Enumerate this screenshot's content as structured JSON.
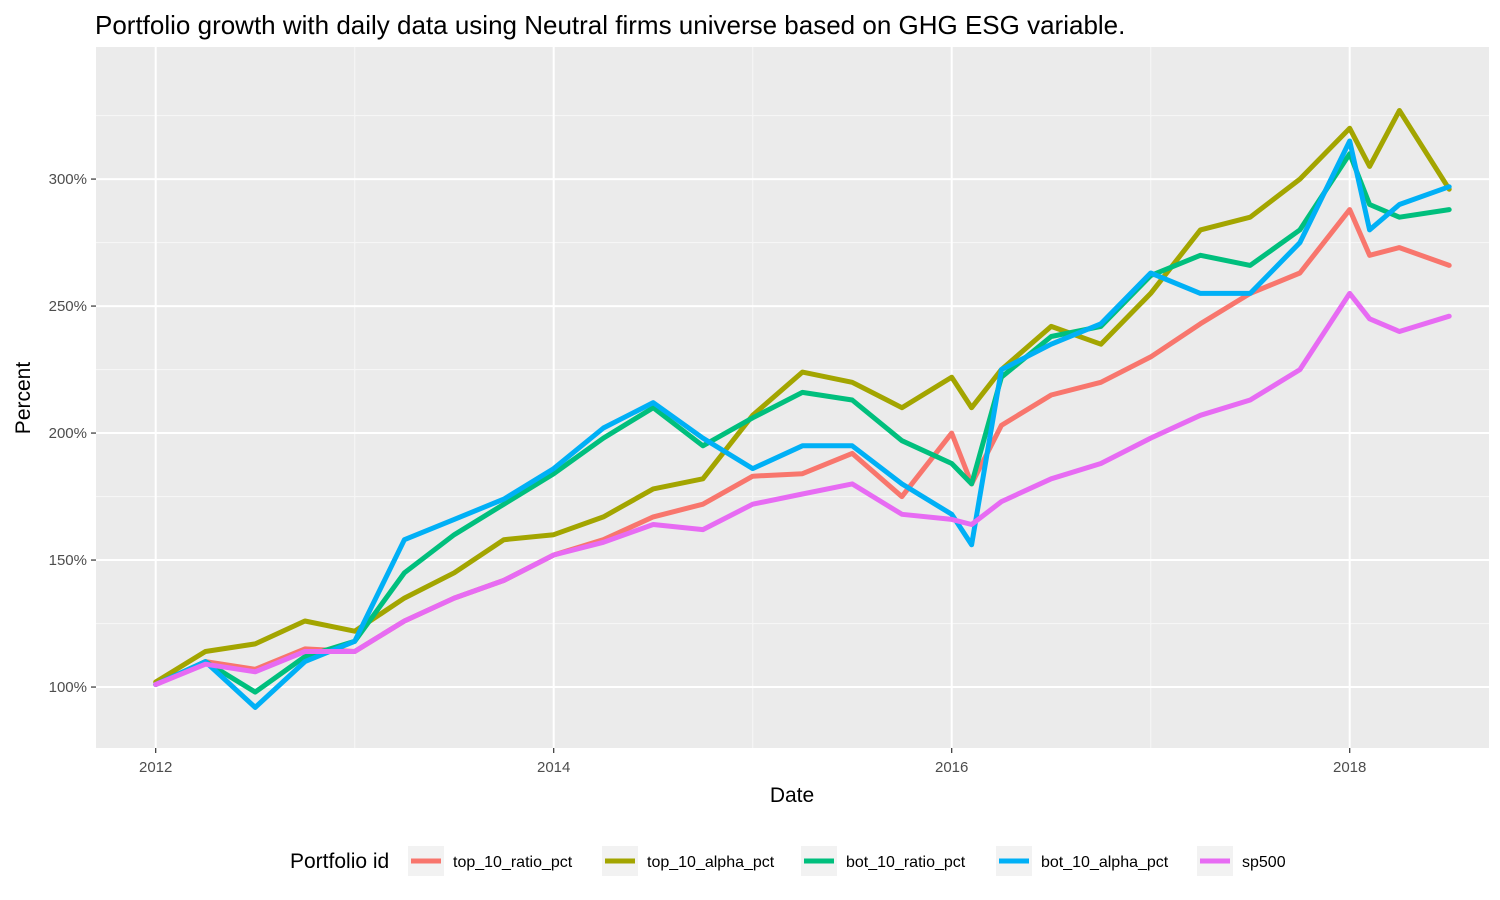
{
  "chart_data": {
    "type": "line",
    "title": "Portfolio growth with daily data using Neutral firms universe based on GHG ESG variable.",
    "xlabel": "Date",
    "ylabel": "Percent",
    "xlim": [
      2011.7,
      2018.7
    ],
    "ylim": [
      0.76,
      3.52
    ],
    "x_ticks": [
      2012,
      2014,
      2016,
      2018
    ],
    "x_tick_labels": [
      "2012",
      "2014",
      "2016",
      "2018"
    ],
    "y_ticks": [
      1.0,
      1.5,
      2.0,
      2.5,
      3.0
    ],
    "y_tick_labels": [
      "100%",
      "150%",
      "200%",
      "250%",
      "300%"
    ],
    "grid": true,
    "legend_title": "Portfolio id",
    "legend_position": "bottom",
    "series": [
      {
        "name": "top_10_ratio_pct",
        "color": "#F8766D",
        "x": [
          2012.0,
          2012.25,
          2012.5,
          2012.75,
          2013.0,
          2013.25,
          2013.5,
          2013.75,
          2014.0,
          2014.25,
          2014.5,
          2014.75,
          2015.0,
          2015.25,
          2015.5,
          2015.75,
          2016.0,
          2016.1,
          2016.25,
          2016.5,
          2016.75,
          2017.0,
          2017.25,
          2017.5,
          2017.75,
          2018.0,
          2018.1,
          2018.25,
          2018.5
        ],
        "y": [
          1.01,
          1.1,
          1.07,
          1.15,
          1.14,
          1.26,
          1.35,
          1.42,
          1.52,
          1.58,
          1.67,
          1.72,
          1.83,
          1.84,
          1.92,
          1.75,
          2.0,
          1.8,
          2.03,
          2.15,
          2.2,
          2.3,
          2.43,
          2.55,
          2.63,
          2.88,
          2.7,
          2.73,
          2.66
        ]
      },
      {
        "name": "top_10_alpha_pct",
        "color": "#A3A500",
        "x": [
          2012.0,
          2012.25,
          2012.5,
          2012.75,
          2013.0,
          2013.25,
          2013.5,
          2013.75,
          2014.0,
          2014.25,
          2014.5,
          2014.75,
          2015.0,
          2015.25,
          2015.5,
          2015.75,
          2016.0,
          2016.1,
          2016.25,
          2016.5,
          2016.75,
          2017.0,
          2017.25,
          2017.5,
          2017.75,
          2018.0,
          2018.1,
          2018.25,
          2018.5
        ],
        "y": [
          1.02,
          1.14,
          1.17,
          1.26,
          1.22,
          1.35,
          1.45,
          1.58,
          1.6,
          1.67,
          1.78,
          1.82,
          2.07,
          2.24,
          2.2,
          2.1,
          2.22,
          2.1,
          2.25,
          2.42,
          2.35,
          2.55,
          2.8,
          2.85,
          3.0,
          3.2,
          3.05,
          3.27,
          2.96
        ]
      },
      {
        "name": "bot_10_ratio_pct",
        "color": "#00BF7D",
        "x": [
          2012.0,
          2012.25,
          2012.5,
          2012.75,
          2013.0,
          2013.25,
          2013.5,
          2013.75,
          2014.0,
          2014.25,
          2014.5,
          2014.75,
          2015.0,
          2015.25,
          2015.5,
          2015.75,
          2016.0,
          2016.1,
          2016.25,
          2016.5,
          2016.75,
          2017.0,
          2017.25,
          2017.5,
          2017.75,
          2018.0,
          2018.1,
          2018.25,
          2018.5
        ],
        "y": [
          1.01,
          1.1,
          0.98,
          1.12,
          1.18,
          1.45,
          1.6,
          1.72,
          1.84,
          1.98,
          2.1,
          1.95,
          2.06,
          2.16,
          2.13,
          1.97,
          1.88,
          1.8,
          2.22,
          2.38,
          2.42,
          2.62,
          2.7,
          2.66,
          2.8,
          3.1,
          2.9,
          2.85,
          2.88
        ]
      },
      {
        "name": "bot_10_alpha_pct",
        "color": "#00B0F6",
        "x": [
          2012.0,
          2012.25,
          2012.5,
          2012.75,
          2013.0,
          2013.25,
          2013.5,
          2013.75,
          2014.0,
          2014.25,
          2014.5,
          2014.75,
          2015.0,
          2015.25,
          2015.5,
          2015.75,
          2016.0,
          2016.1,
          2016.25,
          2016.5,
          2016.75,
          2017.0,
          2017.25,
          2017.5,
          2017.75,
          2018.0,
          2018.1,
          2018.25,
          2018.5
        ],
        "y": [
          1.01,
          1.1,
          0.92,
          1.1,
          1.18,
          1.58,
          1.66,
          1.74,
          1.86,
          2.02,
          2.12,
          1.98,
          1.86,
          1.95,
          1.95,
          1.8,
          1.68,
          1.56,
          2.25,
          2.35,
          2.43,
          2.63,
          2.55,
          2.55,
          2.75,
          3.15,
          2.8,
          2.9,
          2.97
        ]
      },
      {
        "name": "sp500",
        "color": "#E76BF3",
        "x": [
          2012.0,
          2012.25,
          2012.5,
          2012.75,
          2013.0,
          2013.25,
          2013.5,
          2013.75,
          2014.0,
          2014.25,
          2014.5,
          2014.75,
          2015.0,
          2015.25,
          2015.5,
          2015.75,
          2016.0,
          2016.1,
          2016.25,
          2016.5,
          2016.75,
          2017.0,
          2017.25,
          2017.5,
          2017.75,
          2018.0,
          2018.1,
          2018.25,
          2018.5
        ],
        "y": [
          1.01,
          1.09,
          1.06,
          1.14,
          1.14,
          1.26,
          1.35,
          1.42,
          1.52,
          1.57,
          1.64,
          1.62,
          1.72,
          1.76,
          1.8,
          1.68,
          1.66,
          1.64,
          1.73,
          1.82,
          1.88,
          1.98,
          2.07,
          2.13,
          2.25,
          2.55,
          2.45,
          2.4,
          2.46
        ]
      }
    ]
  }
}
